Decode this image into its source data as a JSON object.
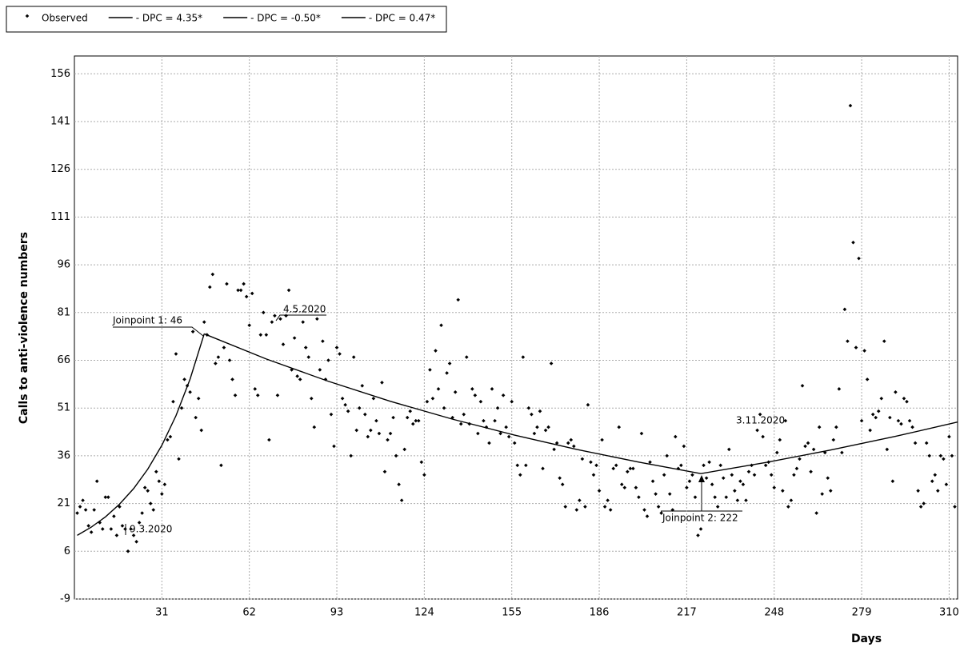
{
  "chart_data": {
    "type": "scatter",
    "y_label": "Calls to anti-violence numbers",
    "x_label": "Days",
    "xlim": [
      0,
      313
    ],
    "ylim": [
      -9,
      161.6
    ],
    "xticks": [
      31,
      62,
      93,
      124,
      155,
      186,
      217,
      248,
      279,
      310
    ],
    "yticks": [
      -9,
      6,
      21,
      36,
      51,
      66,
      81,
      96,
      111,
      126,
      141,
      156
    ],
    "grid": true,
    "legend": "top-left",
    "annotations": [
      "Joinpoint 1:  46",
      "4.5.2020",
      "9.3.2020",
      "Joinpoint 2:  222",
      "3.11.2020"
    ],
    "series": [
      {
        "name": "Observed",
        "kind": "points",
        "color": "#000000",
        "x": [
          1,
          2,
          3,
          4,
          5,
          6,
          7,
          8,
          9,
          10,
          11,
          12,
          13,
          14,
          15,
          16,
          17,
          18,
          19,
          20,
          21,
          22,
          23,
          24,
          25,
          26,
          27,
          28,
          29,
          30,
          31,
          32,
          33,
          34,
          35,
          36,
          37,
          38,
          39,
          40,
          41,
          42,
          43,
          44,
          45,
          46,
          47,
          48,
          49,
          50,
          51,
          52,
          53,
          54,
          55,
          56,
          57,
          58,
          59,
          60,
          61,
          62,
          63,
          64,
          65,
          66,
          67,
          68,
          69,
          70,
          71,
          72,
          73,
          74,
          75,
          76,
          77,
          78,
          79,
          80,
          81,
          82,
          83,
          84,
          85,
          86,
          87,
          88,
          89,
          90,
          91,
          92,
          93,
          94,
          95,
          96,
          97,
          98,
          99,
          100,
          101,
          102,
          103,
          104,
          105,
          106,
          107,
          108,
          109,
          110,
          111,
          112,
          113,
          114,
          115,
          116,
          117,
          118,
          119,
          120,
          121,
          122,
          123,
          124,
          125,
          126,
          127,
          128,
          129,
          130,
          131,
          132,
          133,
          134,
          135,
          136,
          137,
          138,
          139,
          140,
          141,
          142,
          143,
          144,
          145,
          146,
          147,
          148,
          149,
          150,
          151,
          152,
          153,
          154,
          155,
          156,
          157,
          158,
          159,
          160,
          161,
          162,
          163,
          164,
          165,
          166,
          167,
          168,
          169,
          170,
          171,
          172,
          173,
          174,
          175,
          176,
          177,
          178,
          179,
          180,
          181,
          182,
          183,
          184,
          185,
          186,
          187,
          188,
          189,
          190,
          191,
          192,
          193,
          194,
          195,
          196,
          197,
          198,
          199,
          200,
          201,
          202,
          203,
          204,
          205,
          206,
          207,
          208,
          209,
          210,
          211,
          212,
          213,
          214,
          215,
          216,
          217,
          218,
          219,
          220,
          221,
          222,
          223,
          224,
          225,
          226,
          227,
          228,
          229,
          230,
          231,
          232,
          233,
          234,
          235,
          236,
          237,
          238,
          239,
          240,
          241,
          242,
          243,
          244,
          245,
          246,
          247,
          248,
          249,
          250,
          251,
          252,
          253,
          254,
          255,
          256,
          257,
          258,
          259,
          260,
          261,
          262,
          263,
          264,
          265,
          266,
          267,
          268,
          269,
          270,
          271,
          272,
          273,
          274,
          275,
          276,
          277,
          278,
          279,
          280,
          281,
          282,
          283,
          284,
          285,
          286,
          287,
          288,
          289,
          290,
          291,
          292,
          293,
          294,
          295,
          296,
          297,
          298,
          299,
          300,
          301,
          302,
          303,
          304,
          305,
          306,
          307,
          308,
          309,
          310,
          311,
          312
        ],
        "values": [
          18,
          20,
          22,
          19,
          14,
          12,
          19,
          28,
          15,
          13,
          23,
          23,
          13,
          17,
          11,
          20,
          14,
          13,
          6,
          13,
          11,
          9,
          15,
          18,
          26,
          25,
          21,
          19,
          31,
          28,
          24,
          27,
          41,
          42,
          53,
          68,
          35,
          51,
          60,
          58,
          56,
          75,
          48,
          54,
          44,
          78,
          74,
          89,
          93,
          65,
          67,
          33,
          70,
          90,
          66,
          60,
          55,
          88,
          88,
          90,
          86,
          77,
          87,
          57,
          55,
          74,
          81,
          74,
          41,
          78,
          80,
          55,
          79,
          71,
          80,
          88,
          63,
          73,
          61,
          60,
          78,
          70,
          67,
          54,
          45,
          79,
          63,
          72,
          60,
          66,
          49,
          39,
          70,
          68,
          54,
          52,
          50,
          36,
          67,
          44,
          51,
          58,
          49,
          42,
          44,
          54,
          47,
          43,
          59,
          31,
          41,
          43,
          48,
          36,
          27,
          22,
          38,
          48,
          50,
          46,
          47,
          47,
          34,
          30,
          53,
          63,
          54,
          69,
          57,
          77,
          51,
          62,
          65,
          48,
          56,
          85,
          46,
          49,
          67,
          46,
          57,
          55,
          43,
          53,
          47,
          45,
          40,
          57,
          47,
          51,
          43,
          55,
          45,
          42,
          53,
          40,
          33,
          30,
          67,
          33,
          51,
          49,
          43,
          45,
          50,
          32,
          44,
          45,
          65,
          38,
          40,
          29,
          27,
          20,
          40,
          41,
          39,
          19,
          22,
          35,
          20,
          52,
          34,
          30,
          33,
          25,
          41,
          20,
          22,
          19,
          32,
          33,
          45,
          27,
          26,
          31,
          32,
          32,
          26,
          23,
          43,
          19,
          17,
          34,
          28,
          24,
          20,
          18,
          30,
          36,
          24,
          19,
          42,
          32,
          33,
          39,
          26,
          28,
          30,
          23,
          11,
          13,
          33,
          29,
          34,
          27,
          23,
          20,
          33,
          29,
          23,
          38,
          30,
          25,
          22,
          28,
          27,
          22,
          31,
          33,
          30,
          44,
          49,
          42,
          33,
          34,
          30,
          26,
          37,
          41,
          25,
          47,
          20,
          22,
          30,
          32,
          35,
          58,
          39,
          40,
          31,
          38,
          18,
          45,
          24,
          37,
          29,
          25,
          41,
          45,
          57,
          37,
          82,
          72,
          146,
          103,
          70,
          98,
          47,
          69,
          60,
          44,
          49,
          48,
          50,
          54,
          72,
          38,
          48,
          28,
          56,
          47,
          46,
          54,
          53,
          47,
          45,
          40,
          25,
          20,
          21,
          40,
          36,
          28,
          30,
          25,
          36,
          35,
          27,
          42,
          36,
          20
        ]
      },
      {
        "name": "- DPC = 4.35*",
        "kind": "line",
        "color": "#000000",
        "x": [
          1,
          6,
          11,
          16,
          21,
          26,
          31,
          36,
          41,
          46
        ],
        "values": [
          11.0,
          13.6,
          16.8,
          20.8,
          25.7,
          31.8,
          39.3,
          48.6,
          60.1,
          74.3
        ]
      },
      {
        "name": "- DPC = -0.50*",
        "kind": "line",
        "color": "#000000",
        "x": [
          46,
          68,
          90,
          112,
          134,
          156,
          178,
          200,
          222
        ],
        "values": [
          74.3,
          66.4,
          59.4,
          53.1,
          47.5,
          42.5,
          38.0,
          34.0,
          30.4
        ]
      },
      {
        "name": "- DPC = 0.47*",
        "kind": "line",
        "color": "#000000",
        "x": [
          222,
          245,
          268,
          291,
          313
        ],
        "values": [
          30.4,
          33.9,
          37.8,
          42.1,
          46.6
        ]
      }
    ]
  }
}
